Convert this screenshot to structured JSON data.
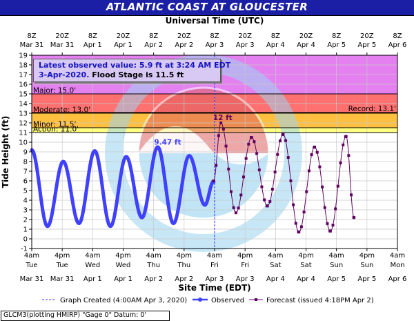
{
  "title": "ATLANTIC COAST AT GLOUCESTER",
  "info_box": {
    "line1": "Latest observed value: 5.9 ft at 3:24 AM EDT",
    "line2_date": "3-Apr-2020.",
    "line2_flood": "Flood Stage is 11.5 ft"
  },
  "footer": "GLCM3(plotting HMIRP) \"Gage 0\" Datum: 0'",
  "colors": {
    "title_bg": "#1b1fa6",
    "major": "#e480f0",
    "moderate": "#ff7070",
    "minor": "#ffc040",
    "action": "#ffff80",
    "observed": "#4040ff",
    "forecast": "#600060",
    "watermark_blue": "#90d0f0",
    "watermark_red": "#e05050"
  },
  "chart_data": {
    "type": "line",
    "xlabel_top": "Universal Time (UTC)",
    "xlabel_bottom": "Site Time (EDT)",
    "ylabel": "Tide Height (ft)",
    "ylim": [
      -1,
      19
    ],
    "yticks": [
      -1,
      0,
      1,
      2,
      3,
      4,
      5,
      6,
      7,
      8,
      9,
      10,
      11,
      12,
      13,
      14,
      15,
      16,
      17,
      18,
      19
    ],
    "xlim_hours": [
      0,
      144
    ],
    "x_unit": "hours after 4am EDT Mar 31",
    "top_ticks": [
      {
        "h": 0,
        "l1": "8Z",
        "l2": "Mar 31"
      },
      {
        "h": 12,
        "l1": "20Z",
        "l2": "Mar 31"
      },
      {
        "h": 24,
        "l1": "8Z",
        "l2": "Apr 1"
      },
      {
        "h": 36,
        "l1": "20Z",
        "l2": "Apr 1"
      },
      {
        "h": 48,
        "l1": "8Z",
        "l2": "Apr 2"
      },
      {
        "h": 60,
        "l1": "20Z",
        "l2": "Apr 2"
      },
      {
        "h": 72,
        "l1": "8Z",
        "l2": "Apr 3"
      },
      {
        "h": 84,
        "l1": "20Z",
        "l2": "Apr 3"
      },
      {
        "h": 96,
        "l1": "8Z",
        "l2": "Apr 4"
      },
      {
        "h": 108,
        "l1": "20Z",
        "l2": "Apr 4"
      },
      {
        "h": 120,
        "l1": "8Z",
        "l2": "Apr 5"
      },
      {
        "h": 132,
        "l1": "20Z",
        "l2": "Apr 5"
      },
      {
        "h": 144,
        "l1": "8Z",
        "l2": "Apr 6"
      }
    ],
    "bottom_ticks": [
      {
        "h": 0,
        "l1": "4am",
        "l2": "Tue",
        "l3": "Mar 31"
      },
      {
        "h": 12,
        "l1": "4pm",
        "l2": "Tue",
        "l3": "Mar 31"
      },
      {
        "h": 24,
        "l1": "4am",
        "l2": "Wed",
        "l3": "Apr 1"
      },
      {
        "h": 36,
        "l1": "4pm",
        "l2": "Wed",
        "l3": "Apr 1"
      },
      {
        "h": 48,
        "l1": "4am",
        "l2": "Thu",
        "l3": "Apr 2"
      },
      {
        "h": 60,
        "l1": "4pm",
        "l2": "Thu",
        "l3": "Apr 2"
      },
      {
        "h": 72,
        "l1": "4am",
        "l2": "Fri",
        "l3": "Apr 3"
      },
      {
        "h": 84,
        "l1": "4pm",
        "l2": "Fri",
        "l3": "Apr 3"
      },
      {
        "h": 96,
        "l1": "4am",
        "l2": "Sat",
        "l3": "Apr 4"
      },
      {
        "h": 108,
        "l1": "4pm",
        "l2": "Sat",
        "l3": "Apr 4"
      },
      {
        "h": 120,
        "l1": "4am",
        "l2": "Sun",
        "l3": "Apr 5"
      },
      {
        "h": 132,
        "l1": "4pm",
        "l2": "Sun",
        "l3": "Apr 5"
      },
      {
        "h": 144,
        "l1": "4am",
        "l2": "Mon",
        "l3": "Apr 6"
      }
    ],
    "flood_categories": [
      {
        "name": "Major",
        "label": "Major: 15.0'",
        "from": 15.0,
        "to": 19.0
      },
      {
        "name": "Moderate",
        "label": "Moderate: 13.0'",
        "from": 13.0,
        "to": 15.0
      },
      {
        "name": "Minor",
        "label": "Minor: 11.5'",
        "from": 11.5,
        "to": 13.0
      },
      {
        "name": "Action",
        "label": "Action: 11.0'",
        "from": 11.0,
        "to": 11.5
      }
    ],
    "record": {
      "label": "Record: 13.1'",
      "value": 13.1
    },
    "graph_created_h": 72,
    "annotations": [
      {
        "text": "9.47 ft",
        "h": 53.5,
        "y": 9.47
      },
      {
        "text": "12 ft",
        "h": 75.2,
        "y": 12.0
      }
    ],
    "observed_extrema": [
      [
        0,
        9.2
      ],
      [
        6.2,
        1.3
      ],
      [
        12.4,
        8.0
      ],
      [
        18.6,
        1.6
      ],
      [
        24.8,
        9.1
      ],
      [
        31.0,
        1.3
      ],
      [
        37.2,
        8.5
      ],
      [
        43.4,
        2.2
      ],
      [
        49.6,
        9.5
      ],
      [
        55.8,
        1.6
      ],
      [
        62.0,
        8.6
      ],
      [
        68.2,
        3.5
      ],
      [
        71.5,
        5.9
      ]
    ],
    "forecast_extrema": [
      [
        71.6,
        6.0
      ],
      [
        74.5,
        12.0
      ],
      [
        80.4,
        2.7
      ],
      [
        86.6,
        10.5
      ],
      [
        92.8,
        3.4
      ],
      [
        99.0,
        10.8
      ],
      [
        105.2,
        0.7
      ],
      [
        111.4,
        9.5
      ],
      [
        117.6,
        0.8
      ],
      [
        123.8,
        10.6
      ],
      [
        126.9,
        2.2
      ]
    ],
    "legend": [
      {
        "name": "Graph Created (4:00AM Apr 3, 2020)",
        "style": "dashed"
      },
      {
        "name": "Observed",
        "style": "observed"
      },
      {
        "name": "Forecast (issued 4:18PM Apr 2)",
        "style": "forecast"
      }
    ]
  }
}
